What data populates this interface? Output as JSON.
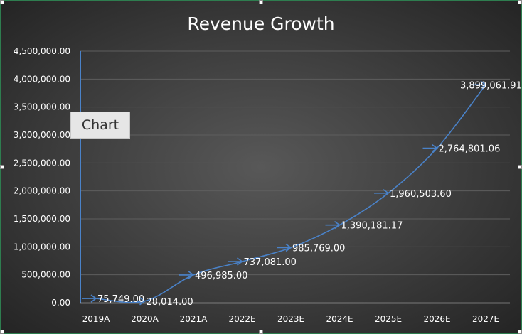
{
  "colors": {
    "series_line": "#4a82c8",
    "gridline": "#5e5e5e",
    "axis_line": "#4a82c8",
    "text": "#ffffff",
    "frame_border": "#2e7d4f"
  },
  "tooltip": {
    "label": "Chart"
  },
  "chart_data": {
    "type": "line",
    "title": "Revenue Growth",
    "xlabel": "",
    "ylabel": "",
    "categories": [
      "2019A",
      "2020A",
      "2021A",
      "2022E",
      "2023E",
      "2024E",
      "2025E",
      "2026E",
      "2027E"
    ],
    "series": [
      {
        "values": [
          75749.0,
          28014.0,
          496985.0,
          737081.0,
          985769.0,
          1390181.17,
          1960503.6,
          2764801.06,
          3899061.91
        ],
        "data_labels": [
          "75,749.00",
          "28,014.00",
          "496,985.00",
          "737,081.00",
          "985,769.00",
          "1,390,181.17",
          "1,960,503.60",
          "2,764,801.06",
          "3,899,061.91"
        ]
      }
    ],
    "ylim": [
      0,
      4500000
    ],
    "yticks": [
      0,
      500000,
      1000000,
      1500000,
      2000000,
      2500000,
      3000000,
      3500000,
      4000000,
      4500000
    ],
    "ytick_labels": [
      "0.00",
      "500,000.00",
      "1,000,000.00",
      "1,500,000.00",
      "2,000,000.00",
      "2,500,000.00",
      "3,000,000.00",
      "3,500,000.00",
      "4,000,000.00",
      "4,500,000.00"
    ],
    "grid": true,
    "legend": "none",
    "marker": "arrow"
  }
}
